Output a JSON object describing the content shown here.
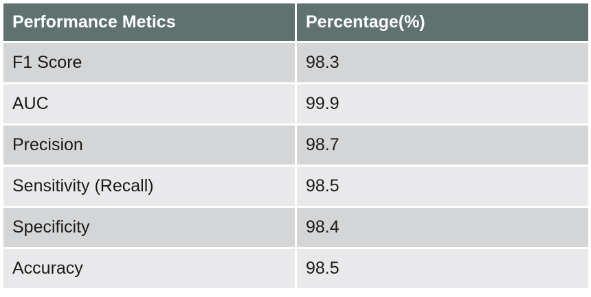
{
  "table": {
    "headers": [
      "Performance Metics",
      "Percentage(%)"
    ],
    "rows": [
      {
        "metric": "F1 Score",
        "value": "98.3"
      },
      {
        "metric": "AUC",
        "value": "99.9"
      },
      {
        "metric": "Precision",
        "value": "98.7"
      },
      {
        "metric": "Sensitivity (Recall)",
        "value": "98.5"
      },
      {
        "metric": "Specificity",
        "value": "98.4"
      },
      {
        "metric": "Accuracy",
        "value": "98.5"
      }
    ]
  },
  "colors": {
    "header_bg": "#5f7270",
    "header_text": "#ffffff",
    "row_odd_bg": "#d4d5d6",
    "row_even_bg": "#e9e9eb",
    "border": "#ffffff"
  }
}
